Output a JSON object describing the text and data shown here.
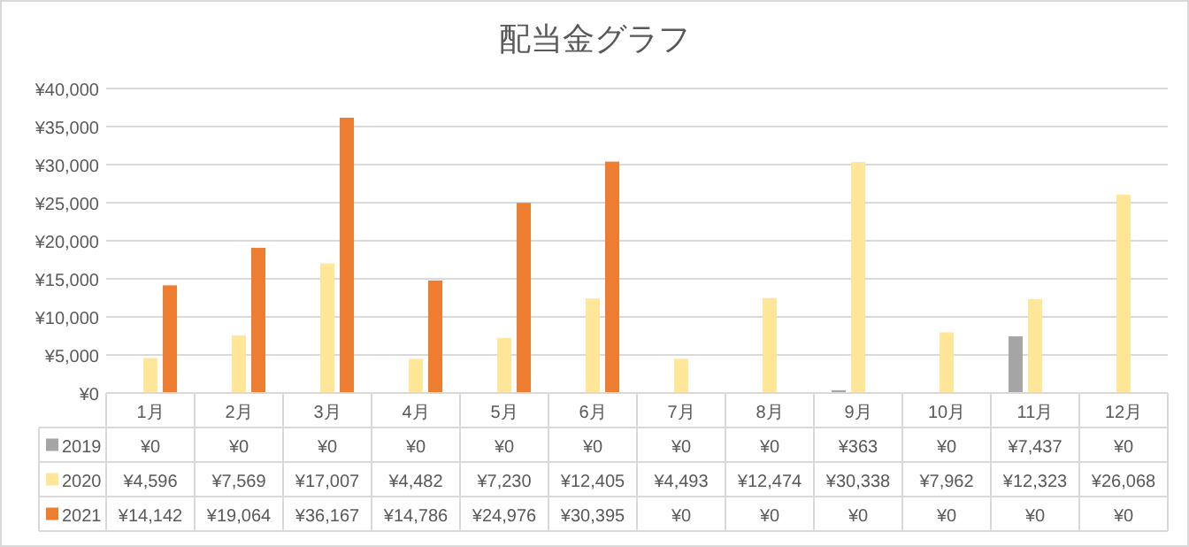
{
  "chart_data": {
    "type": "bar",
    "title": "配当金グラフ",
    "categories": [
      "1月",
      "2月",
      "3月",
      "4月",
      "5月",
      "6月",
      "7月",
      "8月",
      "9月",
      "10月",
      "11月",
      "12月"
    ],
    "ylim": [
      0,
      40000
    ],
    "yticks": [
      {
        "value": 0,
        "label": "¥0"
      },
      {
        "value": 5000,
        "label": "¥5,000"
      },
      {
        "value": 10000,
        "label": "¥10,000"
      },
      {
        "value": 15000,
        "label": "¥15,000"
      },
      {
        "value": 20000,
        "label": "¥20,000"
      },
      {
        "value": 25000,
        "label": "¥25,000"
      },
      {
        "value": 30000,
        "label": "¥30,000"
      },
      {
        "value": 35000,
        "label": "¥35,000"
      },
      {
        "value": 40000,
        "label": "¥40,000"
      }
    ],
    "grid": "y",
    "legend": "bottom",
    "series": [
      {
        "name": "2019",
        "color": "#a5a5a5",
        "values": [
          0,
          0,
          0,
          0,
          0,
          0,
          0,
          0,
          363,
          0,
          7437,
          0
        ],
        "value_labels": [
          "¥0",
          "¥0",
          "¥0",
          "¥0",
          "¥0",
          "¥0",
          "¥0",
          "¥0",
          "¥363",
          "¥0",
          "¥7,437",
          "¥0"
        ]
      },
      {
        "name": "2020",
        "color": "#ffe699",
        "values": [
          4596,
          7569,
          17007,
          4482,
          7230,
          12405,
          4493,
          12474,
          30338,
          7962,
          12323,
          26068
        ],
        "value_labels": [
          "¥4,596",
          "¥7,569",
          "¥17,007",
          "¥4,482",
          "¥7,230",
          "¥12,405",
          "¥4,493",
          "¥12,474",
          "¥30,338",
          "¥7,962",
          "¥12,323",
          "¥26,068"
        ]
      },
      {
        "name": "2021",
        "color": "#ed7d31",
        "values": [
          14142,
          19064,
          36167,
          14786,
          24976,
          30395,
          0,
          0,
          0,
          0,
          0,
          0
        ],
        "value_labels": [
          "¥14,142",
          "¥19,064",
          "¥36,167",
          "¥14,786",
          "¥24,976",
          "¥30,395",
          "¥0",
          "¥0",
          "¥0",
          "¥0",
          "¥0",
          "¥0"
        ]
      }
    ]
  }
}
